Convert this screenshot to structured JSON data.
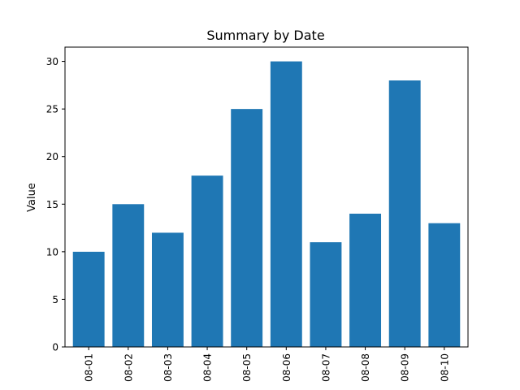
{
  "chart_data": {
    "type": "bar",
    "title": "Summary by Date",
    "xlabel": "",
    "ylabel": "Value",
    "categories": [
      "08-01",
      "08-02",
      "08-03",
      "08-04",
      "08-05",
      "08-06",
      "08-07",
      "08-08",
      "08-09",
      "08-10"
    ],
    "values": [
      10,
      15,
      12,
      18,
      25,
      30,
      11,
      14,
      28,
      13
    ],
    "yticks": [
      0,
      5,
      10,
      15,
      20,
      25,
      30
    ],
    "ylim": [
      0,
      31.5
    ],
    "grid": false,
    "bar_color": "#1f77b4",
    "xtick_rotation": "vertical"
  }
}
